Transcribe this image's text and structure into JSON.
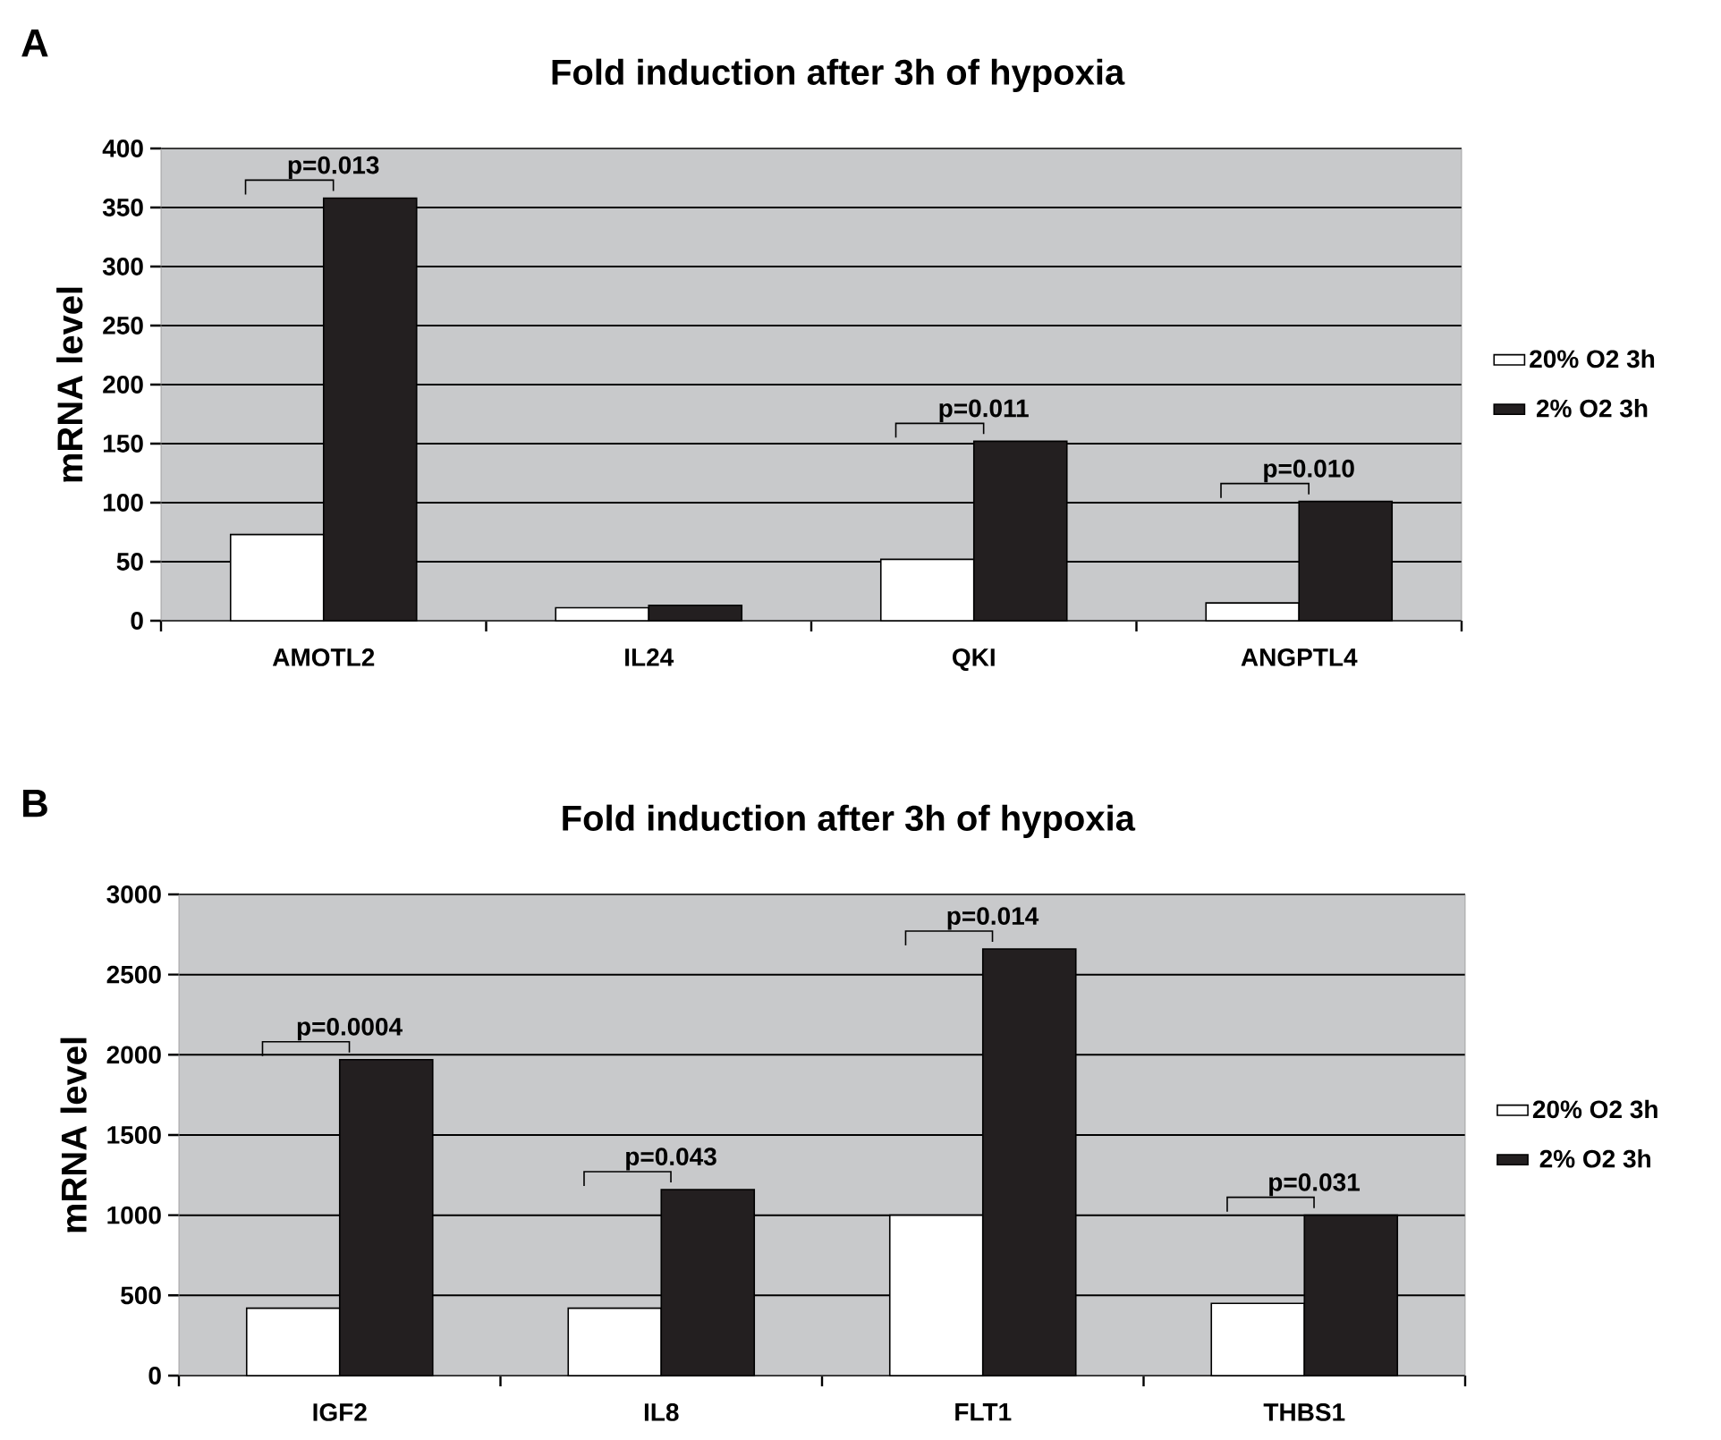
{
  "chart_data": [
    {
      "type": "bar",
      "title": "Fold induction after 3h of hypoxia",
      "ylabel": "mRNA level",
      "categories": [
        "AMOTL2",
        "IL24",
        "QKI",
        "ANGPTL4"
      ],
      "series": [
        {
          "name": "20% O2 3h",
          "color": "#ffffff",
          "values": [
            73,
            11,
            52,
            15
          ]
        },
        {
          "name": "2% O2 3h",
          "color": "#231f20",
          "values": [
            358,
            13,
            152,
            101
          ]
        }
      ],
      "ylim": [
        0,
        400
      ],
      "yticks": [
        0,
        50,
        100,
        150,
        200,
        250,
        300,
        350,
        400
      ],
      "grid": "y",
      "legend": "right",
      "annotations": [
        "A",
        {
          "text": "p=0.013",
          "x": "AMOTL2",
          "y": 358
        },
        {
          "text": "p=0.011",
          "x": "QKI",
          "y": 152
        },
        {
          "text": "p=0.010",
          "x": "ANGPTL4",
          "y": 101
        }
      ]
    },
    {
      "type": "bar",
      "title": "Fold induction after 3h of hypoxia",
      "ylabel": "mRNA level",
      "categories": [
        "IGF2",
        "IL8",
        "FLT1",
        "THBS1"
      ],
      "series": [
        {
          "name": "20% O2 3h",
          "color": "#ffffff",
          "values": [
            420,
            420,
            1000,
            450
          ]
        },
        {
          "name": "2% O2 3h",
          "color": "#231f20",
          "values": [
            1970,
            1160,
            2660,
            1000
          ]
        }
      ],
      "ylim": [
        0,
        3000
      ],
      "yticks": [
        0,
        500,
        1000,
        1500,
        2000,
        2500,
        3000
      ],
      "grid": "y",
      "legend": "right",
      "annotations": [
        "B",
        {
          "text": "p=0.0004",
          "x": "IGF2",
          "y": 1970
        },
        {
          "text": "p=0.043",
          "x": "IL8",
          "y": 1160
        },
        {
          "text": "p=0.014",
          "x": "FLT1",
          "y": 2660
        },
        {
          "text": "p=0.031",
          "x": "THBS1",
          "y": 1000
        }
      ]
    }
  ]
}
